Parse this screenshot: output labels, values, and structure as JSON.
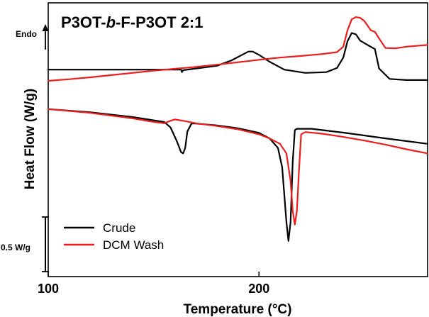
{
  "chart_data": {
    "type": "line",
    "title_parts": [
      "P3OT-",
      "b",
      "-F-P3OT 2:1"
    ],
    "xlabel": "Temperature (°C)",
    "ylabel": "Heat Flow (W/g)",
    "xlim": [
      100,
      280
    ],
    "ylim": [
      0,
      1
    ],
    "x_ticks": [
      100,
      200
    ],
    "x_tick_labels": [
      "100",
      "200"
    ],
    "endo_label": "Endo",
    "scale_bar_label": "0.5 W/g",
    "legend_position": "bottom-left",
    "series": [
      {
        "name": "Crude",
        "color": "#000000",
        "segments": [
          {
            "phase": "heating",
            "x": [
              100,
              120,
              140,
              155,
              163,
              163.5,
              164,
              170,
              180,
              187,
              192,
              195,
              197,
              200,
              205,
              212,
              222,
              232,
              237,
              240,
              242,
              244,
              246,
              248,
              252,
              255,
              257,
              262,
              270,
              280
            ],
            "y": [
              0.756,
              0.756,
              0.756,
              0.756,
              0.756,
              0.747,
              0.754,
              0.76,
              0.77,
              0.79,
              0.81,
              0.822,
              0.822,
              0.81,
              0.785,
              0.756,
              0.744,
              0.747,
              0.762,
              0.8,
              0.86,
              0.89,
              0.885,
              0.862,
              0.844,
              0.831,
              0.76,
              0.722,
              0.718,
              0.718
            ]
          },
          {
            "phase": "cooling",
            "x": [
              100,
              120,
              140,
              155,
              158,
              161,
              163,
              164,
              165,
              166,
              168,
              170,
              180,
              190,
              200,
              205,
              209,
              211,
              212,
              213,
              214,
              215,
              216,
              217,
              218,
              225,
              240,
              260,
              280
            ],
            "y": [
              0.612,
              0.6,
              0.583,
              0.565,
              0.545,
              0.495,
              0.455,
              0.45,
              0.47,
              0.53,
              0.559,
              0.559,
              0.552,
              0.542,
              0.525,
              0.505,
              0.47,
              0.4,
              0.3,
              0.2,
              0.13,
              0.2,
              0.42,
              0.535,
              0.54,
              0.54,
              0.526,
              0.505,
              0.485
            ]
          }
        ]
      },
      {
        "name": "DCM Wash",
        "color": "#ee1c1c",
        "segments": [
          {
            "phase": "heating",
            "x": [
              100,
              110,
              120,
              130,
              140,
              150,
              160,
              170,
              180,
              190,
              200,
              210,
              220,
              230,
              237,
              240,
              242,
              244,
              246,
              248,
              250,
              253,
              255,
              257,
              260,
              265,
              270,
              280
            ],
            "y": [
              0.715,
              0.721,
              0.728,
              0.736,
              0.744,
              0.752,
              0.759,
              0.766,
              0.774,
              0.783,
              0.792,
              0.8,
              0.806,
              0.813,
              0.82,
              0.84,
              0.9,
              0.94,
              0.948,
              0.945,
              0.934,
              0.9,
              0.894,
              0.87,
              0.835,
              0.834,
              0.84,
              0.846
            ]
          },
          {
            "phase": "cooling",
            "x": [
              100,
              120,
              140,
              150,
              155,
              158,
              160,
              165,
              170,
              180,
              190,
              200,
              205,
              210,
              213,
              215,
              216,
              217,
              218,
              219,
              220,
              222,
              230,
              240,
              250,
              260,
              270,
              280
            ],
            "y": [
              0.612,
              0.598,
              0.578,
              0.565,
              0.56,
              0.569,
              0.574,
              0.568,
              0.56,
              0.55,
              0.538,
              0.52,
              0.505,
              0.485,
              0.45,
              0.35,
              0.24,
              0.19,
              0.24,
              0.39,
              0.52,
              0.528,
              0.522,
              0.51,
              0.497,
              0.482,
              0.465,
              0.45
            ]
          }
        ]
      }
    ]
  }
}
